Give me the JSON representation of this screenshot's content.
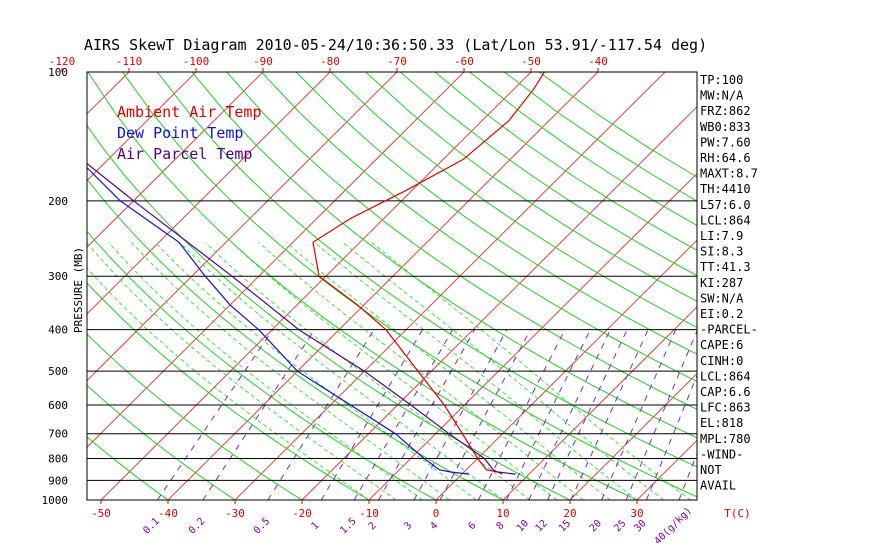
{
  "title": "AIRS SkewT Diagram 2010-05-24/10:36:50.33 (Lat/Lon 53.91/-117.54 deg)",
  "y_axis_label": "PRESSURE (MB)",
  "colors": {
    "ambient": "#e00000",
    "dewpoint": "#1010e0",
    "parcel": "#500090",
    "isotherm": "#e04040",
    "dry_adiabat": "#20d020",
    "moist_adiabat": "#40e040",
    "mixing_ratio": "#7030c0",
    "isobar": "#000000"
  },
  "legend": [
    {
      "label": "Ambient Air Temp",
      "color": "#e00000"
    },
    {
      "label": "Dew Point Temp",
      "color": "#1010e0"
    },
    {
      "label": "Air Parcel Temp",
      "color": "#500090"
    }
  ],
  "top_temp_labels": [
    "-120",
    "-110",
    "-100",
    "-90",
    "-80",
    "-70",
    "-60",
    "-50",
    "-40"
  ],
  "bottom_temp_labels": [
    "-50",
    "-40",
    "-30",
    "-20",
    "-10",
    "0",
    "10",
    "20",
    "30",
    "T(C)"
  ],
  "mixing_ratio_labels": [
    "0.1",
    "0.2",
    "0.5",
    "1",
    "1.5",
    "2",
    "3",
    "4",
    "6",
    "8",
    "10",
    "12",
    "15",
    "20",
    "25",
    "30",
    "40(g/kg)"
  ],
  "pressure_labels": [
    "100",
    "200",
    "300",
    "400",
    "500",
    "600",
    "700",
    "800",
    "900",
    "1000"
  ],
  "indices": [
    "TP:100",
    "MW:N/A",
    "FRZ:862",
    "WB0:833",
    "PW:7.60",
    "RH:64.6",
    "MAXT:8.7",
    "TH:4410",
    "L57:6.0",
    "LCL:864",
    "LI:7.9",
    "SI:8.3",
    "TT:41.3",
    "KI:287",
    "SW:N/A",
    "EI:0.2",
    "-PARCEL-",
    "CAPE:6",
    "CINH:0",
    "LCL:864",
    "CAP:6.6",
    "LFC:863",
    "EL:818",
    "MPL:780",
    "-WIND-",
    "NOT",
    "AVAIL"
  ],
  "chart_data": {
    "type": "line",
    "title": "AIRS SkewT Diagram 2010-05-24/10:36:50.33 (Lat/Lon 53.91/-117.54 deg)",
    "xlabel": "T(C)",
    "ylabel": "PRESSURE (MB)",
    "y_scale": "log",
    "ylim": [
      1000,
      100
    ],
    "xlim_bottom": [
      -50,
      40
    ],
    "series": [
      {
        "name": "Ambient Air Temp",
        "pressure": [
          870,
          860,
          850,
          800,
          700,
          600,
          500,
          400,
          350,
          300,
          250,
          220,
          190,
          160,
          130,
          110,
          100
        ],
        "temp": [
          6,
          5,
          3,
          0,
          -6,
          -13,
          -22,
          -33,
          -41,
          -51,
          -57,
          -55,
          -51,
          -47,
          -46,
          -47,
          -48
        ]
      },
      {
        "name": "Dew Point Temp",
        "pressure": [
          870,
          860,
          850,
          800,
          700,
          600,
          500,
          400,
          350,
          300,
          250,
          200,
          150,
          100
        ],
        "temp": [
          1,
          -2,
          -4,
          -8,
          -16,
          -27,
          -40,
          -52,
          -60,
          -68,
          -77,
          -92,
          -108,
          -124
        ]
      },
      {
        "name": "Air Parcel Temp",
        "pressure": [
          870,
          860,
          850,
          800,
          700,
          600,
          500,
          400,
          300,
          200,
          150,
          100
        ],
        "temp": [
          8,
          5,
          4,
          1,
          -8,
          -18,
          -30,
          -46,
          -64,
          -90,
          -108,
          -132
        ]
      }
    ]
  }
}
